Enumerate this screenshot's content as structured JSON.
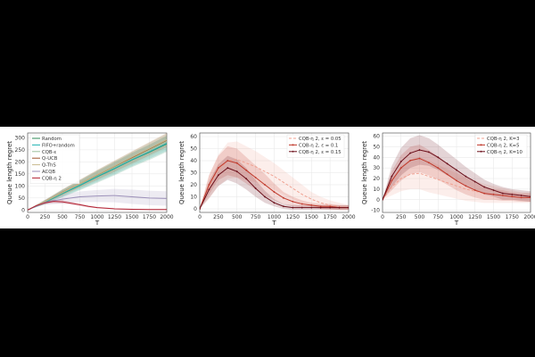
{
  "chart_data": [
    {
      "type": "line",
      "xlabel": "T",
      "ylabel": "Queue length regret",
      "xlim": [
        0,
        2000
      ],
      "ylim": [
        -10,
        320
      ],
      "xticks": [
        0,
        250,
        500,
        750,
        1000,
        1250,
        1500,
        1750,
        2000
      ],
      "yticks": [
        0,
        50,
        100,
        150,
        200,
        250,
        300
      ],
      "grid": true,
      "legend_position": "top-left",
      "series": [
        {
          "name": "Random",
          "color": "#2e8b57",
          "x": [
            0,
            250,
            500,
            750,
            1000,
            1250,
            1500,
            1750,
            2000
          ],
          "values": [
            0,
            32,
            68,
            102,
            138,
            172,
            208,
            240,
            275
          ],
          "band": [
            0,
            8,
            15,
            20,
            25,
            28,
            30,
            32,
            34
          ]
        },
        {
          "name": "FIFO+random",
          "color": "#1fb3b3",
          "x": [
            0,
            250,
            500,
            750,
            1000,
            1250,
            1500,
            1750,
            2000
          ],
          "values": [
            0,
            33,
            69,
            103,
            139,
            173,
            209,
            242,
            277
          ],
          "band": [
            0,
            8,
            14,
            18,
            22,
            25,
            27,
            29,
            31
          ]
        },
        {
          "name": "CQB-ε",
          "color": "#9bbf9b",
          "x": [
            0,
            250,
            500,
            750,
            1000,
            1250,
            1500,
            1750,
            2000
          ],
          "values": [
            0,
            35,
            72,
            108,
            143,
            178,
            215,
            250,
            285
          ],
          "band": [
            0,
            8,
            14,
            18,
            22,
            25,
            27,
            29,
            31
          ]
        },
        {
          "name": "Q-UCB",
          "color": "#a0522d",
          "x": [
            0,
            250,
            500,
            750,
            1000,
            1250,
            1500,
            1750,
            2000
          ],
          "values": [
            0,
            36,
            74,
            110,
            146,
            182,
            218,
            254,
            290
          ],
          "band": [
            0,
            6,
            12,
            16,
            20,
            23,
            25,
            27,
            29
          ]
        },
        {
          "name": "Q-ThS",
          "color": "#c8b98c",
          "x": [
            0,
            250,
            500,
            750,
            1000,
            1250,
            1500,
            1750,
            2000
          ],
          "values": [
            0,
            36,
            73,
            110,
            147,
            183,
            220,
            256,
            292
          ],
          "band": [
            0,
            6,
            12,
            16,
            20,
            23,
            25,
            27,
            29
          ]
        },
        {
          "name": "ACQB",
          "color": "#9b8fb8",
          "x": [
            0,
            250,
            500,
            750,
            1000,
            1250,
            1500,
            1750,
            2000
          ],
          "values": [
            0,
            32,
            45,
            55,
            58,
            60,
            55,
            50,
            48
          ],
          "band": [
            0,
            10,
            18,
            22,
            25,
            28,
            30,
            30,
            30
          ]
        },
        {
          "name": "CQB-η 2",
          "color": "#b22234",
          "x": [
            0,
            125,
            250,
            375,
            500,
            625,
            750,
            875,
            1000,
            1250,
            1500,
            1750,
            2000
          ],
          "values": [
            0,
            18,
            30,
            36,
            34,
            28,
            22,
            15,
            10,
            5,
            3,
            2,
            2
          ],
          "band": [
            0,
            4,
            6,
            7,
            7,
            6,
            5,
            4,
            3,
            2,
            2,
            2,
            2
          ]
        }
      ]
    },
    {
      "type": "line",
      "xlabel": "T",
      "ylabel": "Queue length regret",
      "xlim": [
        0,
        2000
      ],
      "ylim": [
        -3,
        63
      ],
      "xticks": [
        0,
        250,
        500,
        750,
        1000,
        1250,
        1500,
        1750,
        2000
      ],
      "yticks": [
        0,
        10,
        20,
        30,
        40,
        50,
        60
      ],
      "grid": true,
      "legend_position": "top-right",
      "series": [
        {
          "name": "CQB-η 2, ε = 0.05",
          "color": "#f0a090",
          "dash": "3,2",
          "marker": "none",
          "x": [
            0,
            125,
            250,
            375,
            500,
            625,
            750,
            875,
            1000,
            1125,
            1250,
            1375,
            1500,
            1625,
            1750,
            1875,
            2000
          ],
          "values": [
            0,
            18,
            32,
            40,
            41,
            38,
            35,
            31,
            27,
            22,
            17,
            12,
            8,
            5,
            3,
            2,
            1
          ],
          "band": [
            0,
            10,
            13,
            15,
            15,
            14,
            13,
            12,
            11,
            10,
            9,
            8,
            6,
            5,
            4,
            3,
            2
          ]
        },
        {
          "name": "CQB-η 2, ε = 0.1",
          "color": "#c0392b",
          "dash": "",
          "marker": "circle",
          "x": [
            0,
            125,
            250,
            375,
            500,
            625,
            750,
            875,
            1000,
            1125,
            1250,
            1375,
            1500,
            1625,
            1750,
            1875,
            2000
          ],
          "values": [
            0,
            20,
            34,
            40,
            38,
            32,
            26,
            20,
            14,
            9,
            6,
            4,
            3,
            2,
            2,
            1,
            1
          ],
          "band": [
            0,
            8,
            10,
            12,
            12,
            11,
            10,
            9,
            7,
            5,
            4,
            3,
            2,
            2,
            2,
            2,
            2
          ]
        },
        {
          "name": "CQB-η 2, ε = 0.15",
          "color": "#6b0f1a",
          "dash": "",
          "marker": "diamond",
          "x": [
            0,
            125,
            250,
            375,
            500,
            625,
            750,
            875,
            1000,
            1125,
            1250,
            1375,
            1500,
            1625,
            1750,
            1875,
            2000
          ],
          "values": [
            0,
            16,
            28,
            34,
            31,
            25,
            17,
            10,
            5,
            2,
            1,
            1,
            1,
            1,
            1,
            1,
            1
          ],
          "band": [
            0,
            7,
            9,
            10,
            10,
            9,
            7,
            5,
            3,
            2,
            2,
            2,
            2,
            2,
            2,
            2,
            2
          ]
        }
      ]
    },
    {
      "type": "line",
      "xlabel": "T",
      "ylabel": "Queue length regret",
      "xlim": [
        0,
        2000
      ],
      "ylim": [
        -12,
        63
      ],
      "xticks": [
        0,
        250,
        500,
        750,
        1000,
        1250,
        1500,
        1750,
        2000
      ],
      "yticks": [
        -10,
        0,
        10,
        20,
        30,
        40,
        50,
        60
      ],
      "grid": true,
      "legend_position": "top-right",
      "series": [
        {
          "name": "CQB-η 2, K=3",
          "color": "#f0a090",
          "dash": "3,2",
          "marker": "none",
          "x": [
            0,
            125,
            250,
            375,
            500,
            625,
            750,
            875,
            1000,
            1125,
            1250,
            1375,
            1500,
            1625,
            1750,
            1875,
            2000
          ],
          "values": [
            0,
            12,
            20,
            24,
            25,
            22,
            19,
            16,
            13,
            10,
            8,
            6,
            5,
            4,
            3,
            2,
            2
          ],
          "band": [
            0,
            8,
            12,
            14,
            15,
            15,
            14,
            13,
            12,
            11,
            10,
            9,
            8,
            7,
            6,
            5,
            5
          ]
        },
        {
          "name": "CQB-η 2, K=5",
          "color": "#c0392b",
          "dash": "",
          "marker": "circle",
          "x": [
            0,
            125,
            250,
            375,
            500,
            625,
            750,
            875,
            1000,
            1125,
            1250,
            1375,
            1500,
            1625,
            1750,
            1875,
            2000
          ],
          "values": [
            0,
            18,
            30,
            37,
            39,
            35,
            30,
            24,
            18,
            13,
            9,
            6,
            5,
            4,
            3,
            2,
            2
          ],
          "band": [
            0,
            9,
            12,
            13,
            13,
            12,
            11,
            10,
            9,
            8,
            7,
            6,
            5,
            5,
            4,
            4,
            4
          ]
        },
        {
          "name": "CQB-η 2, K=10",
          "color": "#6b0f1a",
          "dash": "",
          "marker": "diamond",
          "x": [
            0,
            125,
            250,
            375,
            500,
            625,
            750,
            875,
            1000,
            1125,
            1250,
            1375,
            1500,
            1625,
            1750,
            1875,
            2000
          ],
          "values": [
            0,
            22,
            36,
            44,
            47,
            45,
            40,
            34,
            28,
            22,
            17,
            12,
            9,
            6,
            5,
            4,
            3
          ],
          "band": [
            0,
            10,
            13,
            14,
            14,
            13,
            12,
            11,
            10,
            9,
            8,
            7,
            6,
            6,
            5,
            5,
            5
          ]
        }
      ]
    }
  ]
}
